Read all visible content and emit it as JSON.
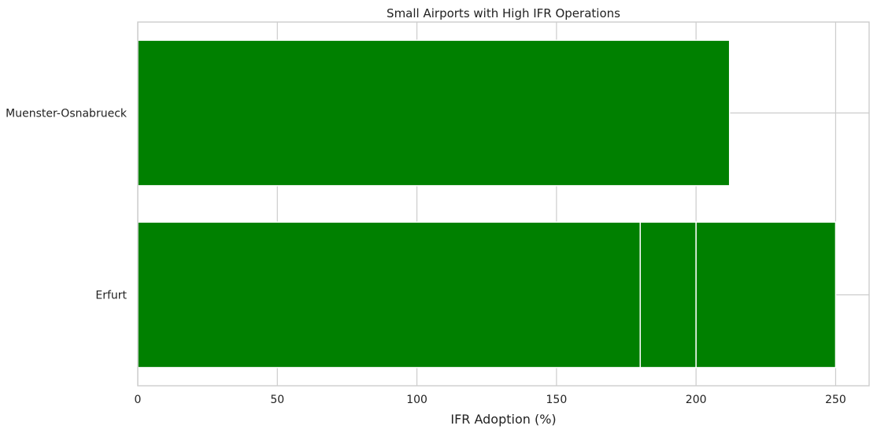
{
  "chart_data": {
    "type": "bar",
    "orientation": "horizontal",
    "title": "Small Airports with High IFR Operations",
    "xlabel": "IFR Adoption (%)",
    "ylabel": "",
    "categories": [
      "Erfurt",
      "Muenster-Osnabrueck"
    ],
    "values": [
      250,
      212
    ],
    "segments": [
      {
        "category": "Erfurt",
        "value": 180
      },
      {
        "category": "Erfurt",
        "value": 200
      },
      {
        "category": "Erfurt",
        "value": 250
      }
    ],
    "xlim": [
      0,
      262
    ],
    "xticks": [
      0,
      50,
      100,
      150,
      200,
      250
    ],
    "grid": true,
    "legend": "none",
    "bar_color": "#008000",
    "grid_color": "#cccccc"
  }
}
